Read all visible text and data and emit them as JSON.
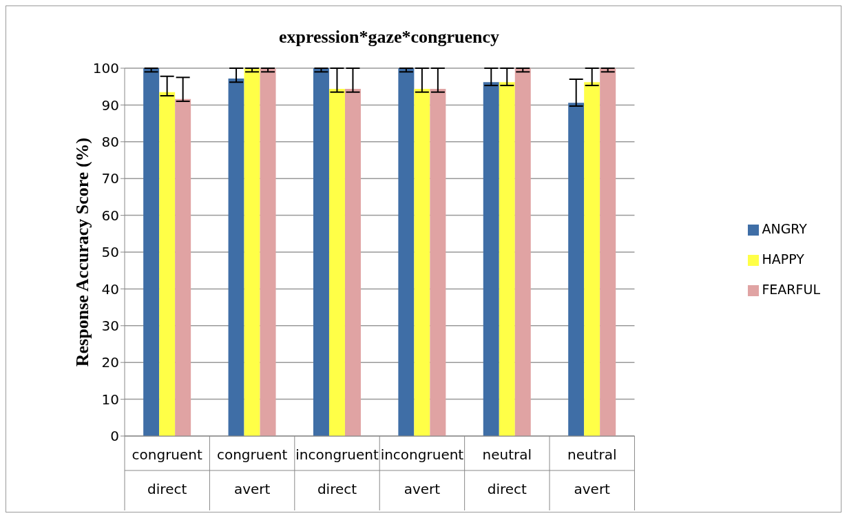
{
  "chart_data": {
    "type": "bar",
    "title": "expression*gaze*congruency",
    "ylabel": "Response Accuracy Score (%)",
    "categories": [
      "congruent\ndirect",
      "congruent\navert",
      "incongruent\ndirect",
      "incongruent\navert",
      "neutral\ndirect",
      "neutral\navert"
    ],
    "series": [
      {
        "name": "ANGRY",
        "color": "#3f6ea6",
        "values": [
          100,
          97.2,
          100,
          100,
          96.2,
          90.6
        ],
        "errors": [
          [
            99,
            100
          ],
          [
            96.2,
            100
          ],
          [
            99,
            100
          ],
          [
            99,
            100
          ],
          [
            95.3,
            100
          ],
          [
            89.7,
            97
          ]
        ]
      },
      {
        "name": "HAPPY",
        "color": "#ffff47",
        "values": [
          93.5,
          100,
          94.4,
          94.4,
          96.2,
          96.2
        ],
        "errors": [
          [
            92.5,
            97.8
          ],
          [
            99,
            100
          ],
          [
            93.5,
            100
          ],
          [
            93.5,
            100
          ],
          [
            95.3,
            100
          ],
          [
            95.3,
            100
          ]
        ]
      },
      {
        "name": "FEARFUL",
        "color": "#e0a3a3",
        "values": [
          91.6,
          100,
          94.4,
          94.4,
          100,
          100
        ],
        "errors": [
          [
            91,
            97.5
          ],
          [
            99,
            100
          ],
          [
            93.5,
            100
          ],
          [
            93.5,
            100
          ],
          [
            99,
            100
          ],
          [
            99,
            100
          ]
        ]
      }
    ],
    "ylim": [
      0,
      100
    ],
    "yticks": [
      0,
      10,
      20,
      30,
      40,
      50,
      60,
      70,
      80,
      90,
      100
    ],
    "grid": "y",
    "legend": "right"
  }
}
